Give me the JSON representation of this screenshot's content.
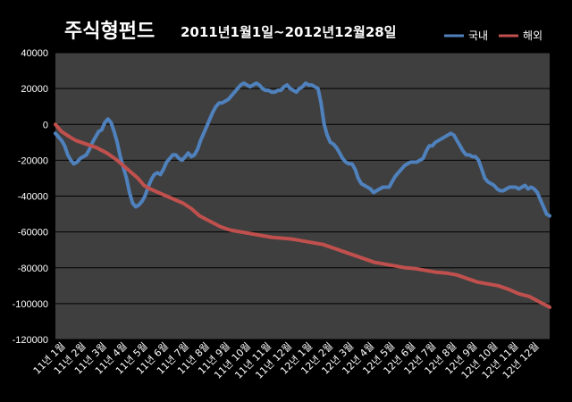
{
  "chart_data": {
    "type": "line",
    "title": "주식형펀드",
    "subtitle": "2011년1월1일~2012년12월28일",
    "xlabel": "",
    "ylabel": "",
    "ylim": [
      -120000,
      40000
    ],
    "yticks": [
      "40000",
      "20000",
      "0",
      "-20000",
      "-40000",
      "-60000",
      "-80000",
      "-100000",
      "-120000"
    ],
    "categories": [
      "11년 1월",
      "11년 2월",
      "11년 3월",
      "11년 4월",
      "11년 5월",
      "11년 6월",
      "11년 7월",
      "11년 8월",
      "11년 9월",
      "11년 10월",
      "11년 11월",
      "11년 12월",
      "12년 1월",
      "12년 2월",
      "12년 3월",
      "12년 4월",
      "12년 5월",
      "12년 6월",
      "12년 7월",
      "12년 8월",
      "12년 9월",
      "12년 10월",
      "12년 11월",
      "12년 12월"
    ],
    "grid": true,
    "legend": "top-right",
    "series": [
      {
        "name": "국내",
        "color": "#4f81bd",
        "x": [
          0,
          0.3,
          0.45,
          0.6,
          0.75,
          0.9,
          1.05,
          1.2,
          1.35,
          1.5,
          1.65,
          1.8,
          1.95,
          2.1,
          2.25,
          2.4,
          2.55,
          2.7,
          2.85,
          3.0,
          3.15,
          3.3,
          3.45,
          3.6,
          3.75,
          3.9,
          4.05,
          4.2,
          4.35,
          4.5,
          4.65,
          4.8,
          4.95,
          5.1,
          5.25,
          5.4,
          5.55,
          5.7,
          5.85,
          6.0,
          6.15,
          6.3,
          6.45,
          6.6,
          6.75,
          6.9,
          7.05,
          7.2,
          7.35,
          7.5,
          7.65,
          7.8,
          7.95,
          8.1,
          8.25,
          8.4,
          8.55,
          8.7,
          8.85,
          9.0,
          9.15,
          9.3,
          9.45,
          9.6,
          9.75,
          9.9,
          10.05,
          10.2,
          10.35,
          10.5,
          10.65,
          10.8,
          10.95,
          11.1,
          11.25,
          11.4,
          11.55,
          11.7,
          11.85,
          12.0,
          12.15,
          12.3,
          12.45,
          12.6,
          12.75,
          12.9,
          13.05,
          13.2,
          13.35,
          13.5,
          13.65,
          13.8,
          13.95,
          14.1,
          14.25,
          14.4,
          14.55,
          14.7,
          14.85,
          15.0,
          15.15,
          15.3,
          15.45,
          15.6,
          15.75,
          15.9,
          16.05,
          16.2,
          16.35,
          16.5,
          16.65,
          16.8,
          16.95,
          17.1,
          17.25,
          17.4,
          17.55,
          17.7,
          17.85,
          18.0,
          18.15,
          18.3,
          18.45,
          18.6,
          18.75,
          18.9,
          19.05,
          19.2,
          19.35,
          19.5,
          19.65,
          19.8,
          19.95,
          20.1,
          20.25,
          20.4,
          20.55,
          20.7,
          20.85,
          21.0,
          21.15,
          21.3,
          21.45,
          21.6,
          21.75,
          21.9,
          22.05,
          22.2,
          22.35,
          22.5,
          22.65,
          22.8,
          22.95,
          23.1,
          23.25,
          23.4,
          23.55,
          23.7,
          23.85,
          24.0
        ],
        "y": [
          -5000,
          -9000,
          -12000,
          -17000,
          -20000,
          -22000,
          -21000,
          -19000,
          -18000,
          -17000,
          -14000,
          -10000,
          -7000,
          -4000,
          -3000,
          1000,
          3000,
          1000,
          -4000,
          -10000,
          -18000,
          -24000,
          -30000,
          -38000,
          -44000,
          -46000,
          -45000,
          -43000,
          -40000,
          -35000,
          -31000,
          -28000,
          -27000,
          -28000,
          -25000,
          -21000,
          -19000,
          -17000,
          -17000,
          -19000,
          -20000,
          -18000,
          -16000,
          -18000,
          -17000,
          -14000,
          -9000,
          -5000,
          -1000,
          3000,
          7000,
          10000,
          12000,
          12000,
          13000,
          14000,
          16000,
          18000,
          20000,
          22000,
          23000,
          22000,
          21000,
          22000,
          23000,
          22000,
          20000,
          19000,
          19000,
          18000,
          18000,
          19000,
          19000,
          21000,
          22000,
          20000,
          19000,
          18000,
          20000,
          21000,
          23000,
          22000,
          22000,
          21000,
          20000,
          12000,
          0,
          -6000,
          -10000,
          -11000,
          -13000,
          -16000,
          -19000,
          -21000,
          -22000,
          -22000,
          -25000,
          -30000,
          -33000,
          -34000,
          -35000,
          -36000,
          -38000,
          -37000,
          -36000,
          -35000,
          -35000,
          -35000,
          -32000,
          -29000,
          -27000,
          -25000,
          -23000,
          -22000,
          -21000,
          -21000,
          -21000,
          -20000,
          -19000,
          -15000,
          -12000,
          -12000,
          -10000,
          -9000,
          -8000,
          -7000,
          -6000,
          -5000,
          -6000,
          -9000,
          -12000,
          -15000,
          -17000,
          -17000,
          -18000,
          -18000,
          -20000,
          -25000,
          -30000,
          -32000,
          -33000,
          -34000,
          -36000,
          -37000,
          -37000,
          -36000,
          -35000,
          -35000,
          -35000,
          -36000,
          -35000,
          -34000,
          -36000,
          -35000,
          -36000,
          -38000,
          -42000,
          -46000,
          -50000,
          -51000
        ]
      },
      {
        "name": "해외",
        "color": "#c0504d",
        "x": [
          0,
          0.3,
          0.7,
          1.0,
          1.5,
          2.0,
          2.5,
          3.0,
          3.5,
          4.0,
          4.3,
          4.6,
          5.0,
          5.4,
          5.8,
          6.2,
          6.6,
          7.0,
          7.5,
          8.0,
          8.5,
          9.0,
          9.5,
          10.0,
          10.5,
          11.0,
          11.5,
          12.0,
          12.5,
          13.0,
          13.5,
          14.0,
          14.5,
          15.0,
          15.5,
          16.0,
          16.5,
          17.0,
          17.5,
          18.0,
          18.5,
          19.0,
          19.5,
          20.0,
          20.5,
          21.0,
          21.5,
          22.0,
          22.5,
          23.0,
          23.5,
          24.0
        ],
        "y": [
          0,
          -4000,
          -7000,
          -9000,
          -11000,
          -13000,
          -16000,
          -20000,
          -25000,
          -30000,
          -34000,
          -36000,
          -38000,
          -40000,
          -42000,
          -44000,
          -47000,
          -51000,
          -54000,
          -57000,
          -59000,
          -60000,
          -61000,
          -62000,
          -63000,
          -63500,
          -64000,
          -65000,
          -66000,
          -67000,
          -69000,
          -71000,
          -73000,
          -75000,
          -77000,
          -78000,
          -79000,
          -80000,
          -80500,
          -81500,
          -82500,
          -83000,
          -84000,
          -86000,
          -88000,
          -89000,
          -90000,
          -92000,
          -94500,
          -96000,
          -99000,
          -102000
        ]
      }
    ]
  }
}
